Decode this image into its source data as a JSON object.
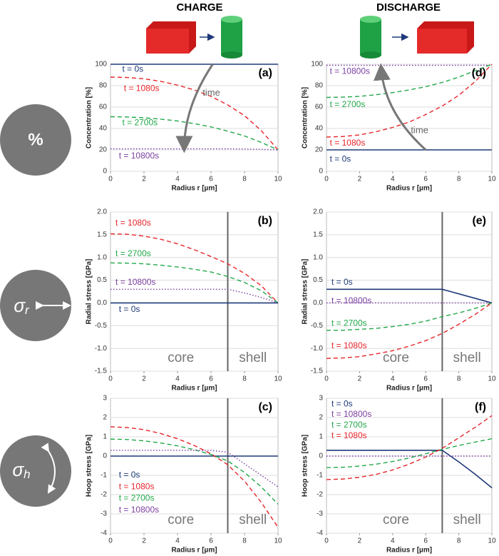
{
  "headers": [
    "CHARGE",
    "DISCHARGE"
  ],
  "row_labels": [
    {
      "symbol": "%"
    },
    {
      "symbol": "σ",
      "sub": "r"
    },
    {
      "symbol": "σ",
      "sub": "h"
    }
  ],
  "chart_data": [
    {
      "type": "line",
      "label": "(a)",
      "xlabel": "Radius r [µm]",
      "ylabel": "Concentration [%]",
      "x": [
        0,
        1,
        2,
        3,
        4,
        5,
        6,
        7,
        8,
        9,
        10
      ],
      "xlim": [
        0,
        10
      ],
      "xticks": [
        0,
        2,
        4,
        6,
        8,
        10
      ],
      "ylim": [
        0,
        100
      ],
      "yticks": [
        0,
        20,
        40,
        60,
        80,
        100
      ],
      "grid": true,
      "annotations": [
        "time"
      ],
      "series": [
        {
          "name": "t = 0s",
          "color": "#1f3a7a",
          "linestyle": "solid",
          "values": [
            100,
            100,
            100,
            100,
            100,
            100,
            100,
            100,
            100,
            100,
            100
          ]
        },
        {
          "name": "t = 1080s",
          "color": "#e8262b",
          "linestyle": "dashed",
          "values": [
            88,
            87.6,
            86.4,
            84,
            80.5,
            76,
            70,
            62,
            52,
            38,
            20
          ]
        },
        {
          "name": "t = 2700s",
          "color": "#22a84a",
          "linestyle": "dashed",
          "values": [
            51,
            50.7,
            50,
            48.7,
            47,
            44.5,
            41.5,
            37.5,
            33,
            27,
            20
          ]
        },
        {
          "name": "t = 10800s",
          "color": "#7b3fa0",
          "linestyle": "dotted",
          "values": [
            21,
            21,
            21,
            21,
            21,
            21,
            21,
            21,
            20.8,
            20.5,
            20
          ]
        }
      ]
    },
    {
      "type": "line",
      "label": "(b)",
      "xlabel": "Radius r [µm]",
      "ylabel": "Radial stress [GPa]",
      "x": [
        0,
        1,
        2,
        3,
        4,
        5,
        6,
        7,
        8,
        9,
        10
      ],
      "xlim": [
        0,
        10
      ],
      "xticks": [
        0,
        2,
        4,
        6,
        8,
        10
      ],
      "ylim": [
        -1.5,
        2
      ],
      "yticks": [
        -1.5,
        {
          "value": -1,
          "label": "-1.0"
        },
        -0.5,
        {
          "value": 0,
          "label": "0.0"
        },
        0.5,
        {
          "value": 1,
          "label": "1.0"
        },
        1.5,
        {
          "value": 2,
          "label": "2.0"
        }
      ],
      "grid": true,
      "core_shell_boundary": 7,
      "annotations": [
        "core",
        "shell"
      ],
      "series": [
        {
          "name": "t = 1080s",
          "color": "#e8262b",
          "linestyle": "dashed",
          "values": [
            1.52,
            1.51,
            1.47,
            1.4,
            1.3,
            1.17,
            1.02,
            0.86,
            0.65,
            0.38,
            0
          ]
        },
        {
          "name": "t = 2700s",
          "color": "#22a84a",
          "linestyle": "dashed",
          "values": [
            0.88,
            0.875,
            0.86,
            0.83,
            0.79,
            0.74,
            0.68,
            0.58,
            0.45,
            0.27,
            0
          ]
        },
        {
          "name": "t = 10800s",
          "color": "#7b3fa0",
          "linestyle": "dotted",
          "values": [
            0.3,
            0.3,
            0.3,
            0.3,
            0.3,
            0.3,
            0.3,
            0.3,
            0.22,
            0.12,
            0
          ]
        },
        {
          "name": "t = 0s",
          "color": "#1f3a7a",
          "linestyle": "solid",
          "values": [
            0,
            0,
            0,
            0,
            0,
            0,
            0,
            0,
            0,
            0,
            0
          ]
        }
      ]
    },
    {
      "type": "line",
      "label": "(c)",
      "xlabel": "Radius r [µm]",
      "ylabel": "Hoop stress [GPa]",
      "x": [
        0,
        1,
        2,
        3,
        4,
        5,
        6,
        7,
        8,
        9,
        10
      ],
      "xlim": [
        0,
        10
      ],
      "xticks": [
        0,
        2,
        4,
        6,
        8,
        10
      ],
      "ylim": [
        -4,
        3
      ],
      "yticks": [
        -4,
        -3,
        -2,
        -1,
        0,
        1,
        2,
        3
      ],
      "grid": true,
      "core_shell_boundary": 7,
      "annotations": [
        "core",
        "shell"
      ],
      "series": [
        {
          "name": "t = 0s",
          "color": "#1f3a7a",
          "linestyle": "solid",
          "values": [
            0,
            0,
            0,
            0,
            0,
            0,
            0,
            0,
            0,
            0,
            0
          ]
        },
        {
          "name": "t = 1080s",
          "color": "#e8262b",
          "linestyle": "dashed",
          "values": [
            1.52,
            1.48,
            1.37,
            1.17,
            0.9,
            0.55,
            0.12,
            -0.45,
            -1.3,
            -2.4,
            -3.7
          ]
        },
        {
          "name": "t = 2700s",
          "color": "#22a84a",
          "linestyle": "dashed",
          "values": [
            0.88,
            0.86,
            0.79,
            0.68,
            0.53,
            0.33,
            0.08,
            -0.25,
            -0.85,
            -1.6,
            -2.5
          ]
        },
        {
          "name": "t = 10800s",
          "color": "#7b3fa0",
          "linestyle": "dotted",
          "values": [
            0.3,
            0.3,
            0.3,
            0.3,
            0.3,
            0.3,
            0.3,
            0.2,
            -0.4,
            -1,
            -1.6
          ]
        }
      ]
    },
    {
      "type": "line",
      "label": "(d)",
      "xlabel": "Radius r [µm]",
      "ylabel": "Concentration [%]",
      "x": [
        0,
        1,
        2,
        3,
        4,
        5,
        6,
        7,
        8,
        9,
        10
      ],
      "xlim": [
        0,
        10
      ],
      "xticks": [
        0,
        2,
        4,
        6,
        8,
        10
      ],
      "ylim": [
        0,
        100
      ],
      "yticks": [
        0,
        20,
        40,
        60,
        80,
        100
      ],
      "grid": true,
      "annotations": [
        "time"
      ],
      "series": [
        {
          "name": "t = 10800s",
          "color": "#7b3fa0",
          "linestyle": "dotted",
          "values": [
            99,
            99,
            99,
            99,
            99,
            99,
            99,
            99,
            99,
            99,
            99
          ]
        },
        {
          "name": "t = 2700s",
          "color": "#22a84a",
          "linestyle": "dashed",
          "values": [
            69,
            69.3,
            70,
            71.5,
            73.5,
            76,
            79,
            83,
            88,
            94,
            100
          ]
        },
        {
          "name": "t = 1080s",
          "color": "#e8262b",
          "linestyle": "dashed",
          "values": [
            32,
            32.5,
            34,
            37,
            41,
            46,
            53,
            61,
            71,
            84,
            100
          ]
        },
        {
          "name": "t = 0s",
          "color": "#1f3a7a",
          "linestyle": "solid",
          "values": [
            20,
            20,
            20,
            20,
            20,
            20,
            20,
            20,
            20,
            20,
            20
          ]
        }
      ]
    },
    {
      "type": "line",
      "label": "(e)",
      "xlabel": "Radius r [µm]",
      "ylabel": "Radial stress [GPa]",
      "x": [
        0,
        1,
        2,
        3,
        4,
        5,
        6,
        7,
        8,
        9,
        10
      ],
      "xlim": [
        0,
        10
      ],
      "xticks": [
        0,
        2,
        4,
        6,
        8,
        10
      ],
      "ylim": [
        -1.5,
        2
      ],
      "yticks": [
        -1.5,
        {
          "value": -1,
          "label": "-1.0"
        },
        -0.5,
        {
          "value": 0,
          "label": "0.0"
        },
        0.5,
        {
          "value": 1,
          "label": "1.0"
        },
        1.5,
        {
          "value": 2,
          "label": "2.0"
        }
      ],
      "grid": true,
      "core_shell_boundary": 7,
      "annotations": [
        "core",
        "shell"
      ],
      "series": [
        {
          "name": "t = 0s",
          "color": "#1f3a7a",
          "linestyle": "solid",
          "values": [
            0.3,
            0.3,
            0.3,
            0.3,
            0.3,
            0.3,
            0.3,
            0.3,
            0.2,
            0.1,
            0
          ]
        },
        {
          "name": "t = 10800s",
          "color": "#7b3fa0",
          "linestyle": "dotted",
          "values": [
            0,
            0,
            0,
            0,
            0,
            0,
            0,
            0,
            0,
            0,
            0
          ]
        },
        {
          "name": "t = 2700s",
          "color": "#22a84a",
          "linestyle": "dashed",
          "values": [
            -0.6,
            -0.6,
            -0.58,
            -0.56,
            -0.52,
            -0.47,
            -0.4,
            -0.3,
            -0.22,
            -0.12,
            0
          ]
        },
        {
          "name": "t = 1080s",
          "color": "#e8262b",
          "linestyle": "dashed",
          "values": [
            -1.22,
            -1.21,
            -1.18,
            -1.12,
            -1.05,
            -0.95,
            -0.83,
            -0.67,
            -0.47,
            -0.25,
            0
          ]
        }
      ]
    },
    {
      "type": "line",
      "label": "(f)",
      "xlabel": "Radius r [µm]",
      "ylabel": "Hoop stress [GPa]",
      "x": [
        0,
        1,
        2,
        3,
        4,
        5,
        6,
        7,
        8,
        9,
        10
      ],
      "xlim": [
        0,
        10
      ],
      "xticks": [
        0,
        2,
        4,
        6,
        8,
        10
      ],
      "ylim": [
        -4,
        3
      ],
      "yticks": [
        -4,
        -3,
        -2,
        -1,
        0,
        1,
        2,
        3
      ],
      "grid": true,
      "core_shell_boundary": 7,
      "annotations": [
        "core",
        "shell"
      ],
      "series": [
        {
          "name": "t = 0s",
          "color": "#1f3a7a",
          "linestyle": "solid",
          "values": [
            0.3,
            0.3,
            0.3,
            0.3,
            0.3,
            0.3,
            0.3,
            0.3,
            -0.3,
            -0.95,
            -1.65
          ]
        },
        {
          "name": "t = 10800s",
          "color": "#7b3fa0",
          "linestyle": "dotted",
          "values": [
            0,
            0,
            0,
            0,
            0,
            0,
            0,
            0,
            0,
            0,
            0
          ]
        },
        {
          "name": "t = 2700s",
          "color": "#22a84a",
          "linestyle": "dashed",
          "values": [
            -0.6,
            -0.58,
            -0.52,
            -0.42,
            -0.28,
            -0.1,
            0.12,
            0.35,
            0.55,
            0.73,
            0.9
          ]
        },
        {
          "name": "t = 1080s",
          "color": "#e8262b",
          "linestyle": "dashed",
          "values": [
            -1.22,
            -1.19,
            -1.1,
            -0.95,
            -0.72,
            -0.42,
            -0.05,
            0.4,
            0.95,
            1.5,
            2.1
          ]
        }
      ]
    }
  ]
}
